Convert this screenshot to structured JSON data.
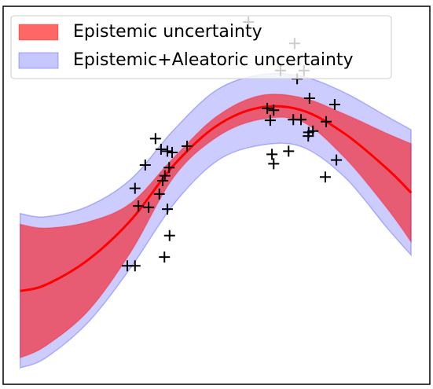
{
  "chart_data": {
    "type": "line",
    "xlim": [
      0,
      10
    ],
    "ylim": [
      -3,
      3
    ],
    "legend": "upper left",
    "x": [
      0.4,
      1,
      2,
      3,
      4,
      5,
      6,
      7,
      8,
      9,
      9.56
    ],
    "mean": {
      "color": "red",
      "values": [
        -1.52,
        -1.42,
        -1.02,
        -0.39,
        0.48,
        1.1,
        1.39,
        1.35,
        0.98,
        0.42,
        0.04
      ]
    },
    "bands": [
      {
        "name": "Epistemic+Aleatoric uncertainty",
        "color": "blue",
        "upper": [
          -0.29,
          -0.34,
          -0.17,
          0.26,
          1.04,
          1.67,
          1.91,
          1.89,
          1.63,
          1.25,
          1.04
        ],
        "lower": [
          -2.74,
          -2.58,
          -2.01,
          -1.14,
          -0.14,
          0.54,
          0.79,
          0.77,
          0.29,
          -0.52,
          -0.95
        ]
      },
      {
        "name": "Epistemic uncertainty",
        "color": "red",
        "upper": [
          -0.46,
          -0.52,
          -0.42,
          -0.12,
          0.6,
          1.25,
          1.58,
          1.55,
          1.29,
          0.98,
          0.82
        ],
        "lower": [
          -2.58,
          -2.39,
          -1.83,
          -0.89,
          0.29,
          0.92,
          1.2,
          1.17,
          0.6,
          -0.21,
          -0.74
        ]
      }
    ],
    "points": {
      "color": "black",
      "x": [
        5.75,
        6.83,
        6.5,
        7.05,
        6.89,
        7.18,
        7.77,
        6.19,
        6.34,
        6.26,
        6.8,
        6.98,
        7.57,
        7.16,
        7.26,
        7.15,
        3.57,
        4.31,
        3.7,
        3.85,
        3.96,
        6.69,
        6.3,
        6.34,
        7.81,
        3.33,
        3.89,
        3.79,
        3.74,
        7.55,
        3.09,
        3.66,
        3.17,
        3.41,
        3.85,
        3.9,
        3.78,
        2.91,
        3.09
      ],
      "y": [
        2.75,
        2.41,
        1.98,
        1.98,
        1.85,
        1.54,
        1.44,
        1.38,
        1.35,
        1.19,
        1.2,
        1.2,
        1.17,
        1.0,
        1.02,
        0.94,
        0.9,
        0.78,
        0.73,
        0.7,
        0.68,
        0.7,
        0.65,
        0.5,
        0.56,
        0.48,
        0.44,
        0.31,
        0.23,
        0.29,
        0.11,
        0.02,
        -0.17,
        -0.19,
        -0.22,
        -0.64,
        -0.98,
        -1.12,
        -1.12
      ]
    }
  }
}
